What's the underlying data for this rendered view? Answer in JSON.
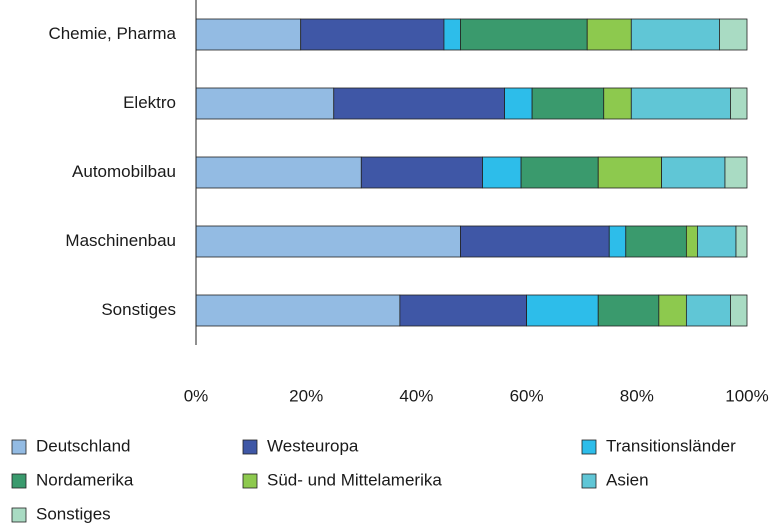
{
  "chart_data": {
    "type": "stacked_bar_horizontal",
    "categories": [
      "Chemie, Pharma",
      "Elektro",
      "Automobilbau",
      "Maschinenbau",
      "Sonstiges"
    ],
    "series": [
      {
        "name": "Deutschland",
        "color": "#93bbe3",
        "values": [
          19,
          25,
          30,
          48,
          37
        ]
      },
      {
        "name": "Westeuropa",
        "color": "#3f57a6",
        "values": [
          26,
          31,
          22,
          27,
          23
        ]
      },
      {
        "name": "Transitionsländer",
        "color": "#2dbdea",
        "values": [
          3,
          5,
          7,
          3,
          13
        ]
      },
      {
        "name": "Nordamerika",
        "color": "#3a9a6d",
        "values": [
          23,
          13,
          14,
          11,
          11
        ]
      },
      {
        "name": "Süd- und Mittelamerika",
        "color": "#8dc94e",
        "values": [
          8,
          5,
          11.5,
          2,
          5
        ]
      },
      {
        "name": "Asien",
        "color": "#60c6d6",
        "values": [
          16,
          18,
          11.5,
          7,
          8
        ]
      },
      {
        "name": "Sonstiges",
        "color": "#a9dbc3",
        "values": [
          5,
          3,
          4,
          2,
          3
        ]
      }
    ],
    "xlim": [
      0,
      100
    ],
    "xticks": [
      {
        "value": 0,
        "label": "0%"
      },
      {
        "value": 20,
        "label": "20%"
      },
      {
        "value": 40,
        "label": "40%"
      },
      {
        "value": 60,
        "label": "60%"
      },
      {
        "value": 80,
        "label": "80%"
      },
      {
        "value": 100,
        "label": "100%"
      }
    ],
    "legend_columns": 3
  }
}
